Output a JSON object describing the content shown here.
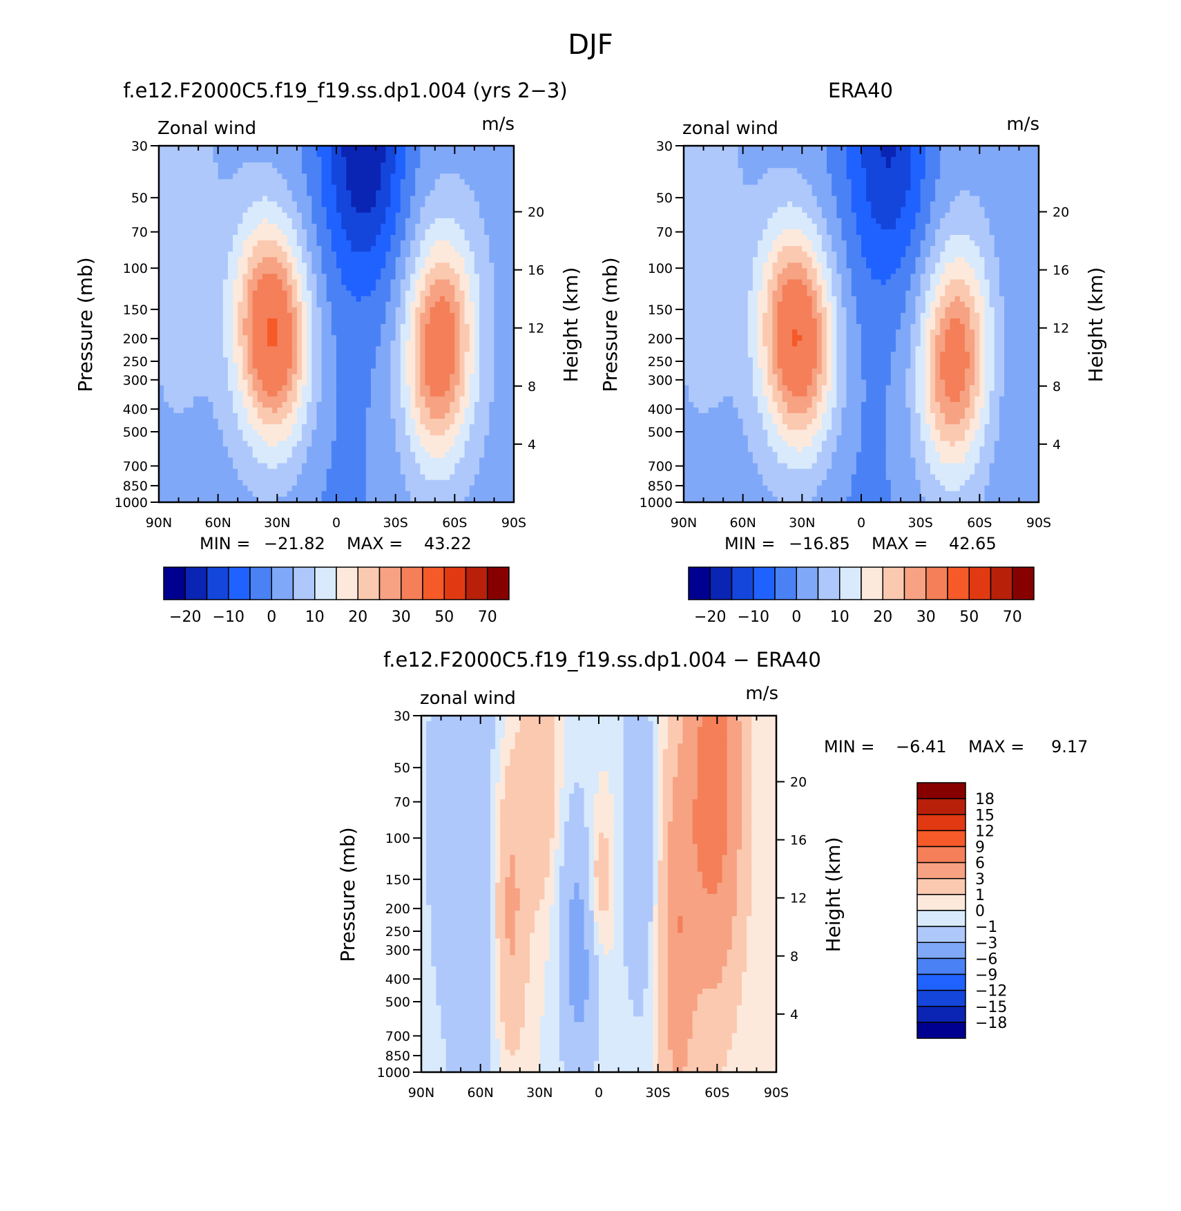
{
  "figure": {
    "title": "DJF"
  },
  "colors": {
    "wind_levels": [
      "#000090",
      "#0a24b4",
      "#1446dc",
      "#2062ff",
      "#4a82f5",
      "#80a8f8",
      "#aec8fb",
      "#d8eafc",
      "#fde9dc",
      "#fbc9b0",
      "#f6a283",
      "#f47f58",
      "#f55a28",
      "#e13a12",
      "#b8200a",
      "#870000"
    ],
    "diff_levels": [
      "#000090",
      "#0a24b4",
      "#1446dc",
      "#2062ff",
      "#4a82f5",
      "#80a8f8",
      "#aec8fb",
      "#d8eafc",
      "#fde9dc",
      "#fbc9b0",
      "#f6a283",
      "#f47f58",
      "#f55a28",
      "#e13a12",
      "#b8200a",
      "#870000"
    ]
  },
  "chart_data": [
    {
      "type": "heatmap",
      "title": "f.e12.F2000C5.f19_f19.ss.dp1.004 (yrs 2−3)",
      "left_label": "Zonal wind",
      "right_label": "m/s",
      "ylabel": "Pressure (mb)",
      "y2label": "Height (km)",
      "x_ticks": [
        "90N",
        "60N",
        "30N",
        "0",
        "30S",
        "60S",
        "90S"
      ],
      "y_ticks": [
        "30",
        "50",
        "70",
        "100",
        "150",
        "200",
        "250",
        "300",
        "400",
        "500",
        "700",
        "850",
        "1000"
      ],
      "y2_ticks": [
        "20",
        "16",
        "12",
        "8",
        "4"
      ],
      "stats": {
        "min_label": "MIN =",
        "min": "−21.82",
        "max_label": "MAX =",
        "max": "43.22"
      },
      "jets": [
        {
          "lat": 30,
          "p": 190,
          "peak": 43.22
        },
        {
          "lat": -50,
          "p": 220,
          "peak": 38
        }
      ],
      "minimum": {
        "lat": -15,
        "p": 30,
        "value": -21.82
      },
      "colorbar": {
        "orientation": "horizontal",
        "labels": [
          "−20",
          "−10",
          "0",
          "10",
          "20",
          "30",
          "50",
          "70"
        ]
      }
    },
    {
      "type": "heatmap",
      "title": "ERA40",
      "left_label": "zonal wind",
      "right_label": "m/s",
      "ylabel": "Pressure (mb)",
      "y2label": "Height (km)",
      "x_ticks": [
        "90N",
        "60N",
        "30N",
        "0",
        "30S",
        "60S",
        "90S"
      ],
      "y_ticks": [
        "30",
        "50",
        "70",
        "100",
        "150",
        "200",
        "250",
        "300",
        "400",
        "500",
        "700",
        "850",
        "1000"
      ],
      "y2_ticks": [
        "20",
        "16",
        "12",
        "8",
        "4"
      ],
      "stats": {
        "min_label": "MIN =",
        "min": "−16.85",
        "max_label": "MAX =",
        "max": "42.65"
      },
      "jets": [
        {
          "lat": 30,
          "p": 200,
          "peak": 42.65
        },
        {
          "lat": -45,
          "p": 250,
          "peak": 36
        }
      ],
      "minimum": {
        "lat": -15,
        "p": 30,
        "value": -16.85
      },
      "colorbar": {
        "orientation": "horizontal",
        "labels": [
          "−20",
          "−10",
          "0",
          "10",
          "20",
          "30",
          "50",
          "70"
        ]
      }
    },
    {
      "type": "heatmap",
      "title": "f.e12.F2000C5.f19_f19.ss.dp1.004 − ERA40",
      "left_label": "zonal wind",
      "right_label": "m/s",
      "ylabel": "Pressure (mb)",
      "y2label": "Height (km)",
      "x_ticks": [
        "90N",
        "60N",
        "30N",
        "0",
        "30S",
        "60S",
        "90S"
      ],
      "y_ticks": [
        "30",
        "50",
        "70",
        "100",
        "150",
        "200",
        "250",
        "300",
        "400",
        "500",
        "700",
        "850",
        "1000"
      ],
      "y2_ticks": [
        "20",
        "16",
        "12",
        "8",
        "4"
      ],
      "stats": {
        "min_label": "MIN =",
        "min": "−6.41",
        "max_label": "MAX =",
        "max": "9.17"
      },
      "colorbar": {
        "orientation": "vertical",
        "labels": [
          "18",
          "15",
          "12",
          "9",
          "6",
          "3",
          "1",
          "0",
          "−1",
          "−3",
          "−6",
          "−9",
          "−12",
          "−15",
          "−18"
        ]
      }
    }
  ]
}
